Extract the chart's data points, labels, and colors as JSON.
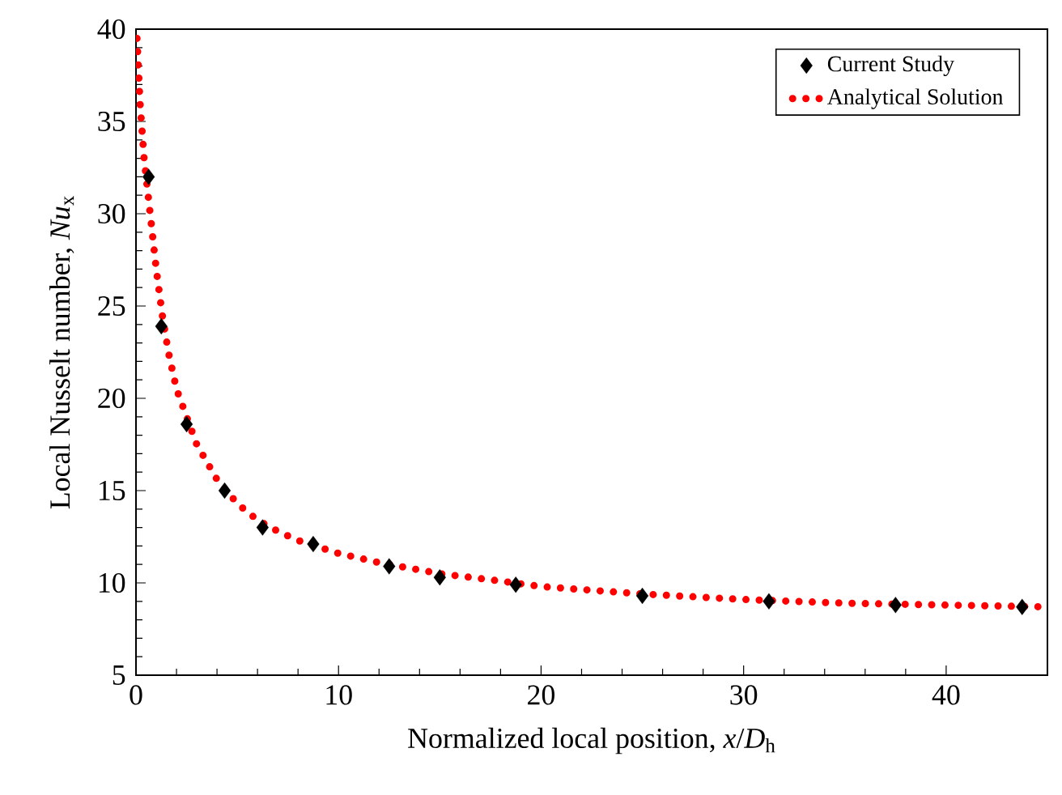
{
  "chart_data": {
    "type": "scatter",
    "xlabel": "Normalized local position, *x*/*D*$_{h}$",
    "ylabel": "Local Nusselt number, *Nu*$_{x}$",
    "xlim": [
      0,
      45
    ],
    "xticks": [
      0,
      10,
      20,
      30,
      40
    ],
    "ylim": [
      5,
      40
    ],
    "yticks": [
      5,
      10,
      15,
      20,
      25,
      30,
      35,
      40
    ],
    "grid": false,
    "legend": "top right",
    "series": [
      {
        "name": "Current Study",
        "color": "#000000",
        "marker": "diamond",
        "x": [
          0.625,
          1.25,
          2.5,
          4.375,
          6.25,
          8.75,
          12.5,
          15,
          18.75,
          25,
          31.25,
          37.5,
          43.75
        ],
        "values": [
          32.0,
          23.9,
          18.6,
          15.0,
          13.0,
          12.1,
          10.9,
          10.3,
          9.9,
          9.3,
          9.0,
          8.8,
          8.7
        ]
      },
      {
        "name": "Analytical Solution",
        "type": "line",
        "color": "#ff0000",
        "marker": "none",
        "line_style": "dotted",
        "x": [
          0.05,
          0.2,
          0.4,
          0.6,
          0.8,
          1.0,
          1.3,
          1.6,
          2.0,
          2.5,
          3,
          4,
          5,
          6,
          7,
          8,
          10,
          12,
          15,
          18,
          20,
          25,
          30,
          35,
          40,
          45
        ],
        "values": [
          39.5,
          36,
          33,
          31,
          29,
          27,
          24.5,
          22.5,
          20.5,
          19,
          17.5,
          15.6,
          14.3,
          13.4,
          12.8,
          12.3,
          11.6,
          11.1,
          10.5,
          10.1,
          9.8,
          9.4,
          9.1,
          8.9,
          8.8,
          8.7
        ]
      }
    ]
  }
}
